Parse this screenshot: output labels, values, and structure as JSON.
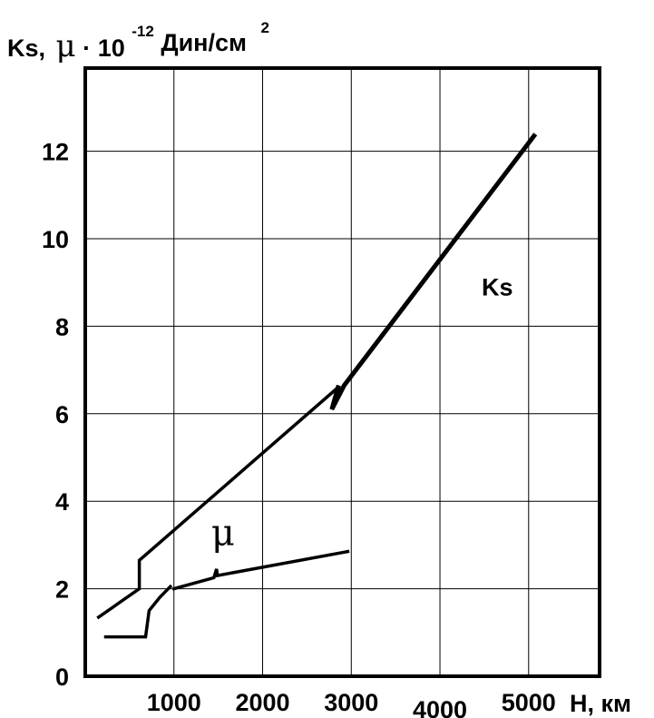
{
  "chart_data": {
    "type": "line",
    "title": "",
    "ylabel": {
      "prefix": "Ks,",
      "mu": "μ",
      "dot": "·",
      "base": "10",
      "exponent": "-12",
      "unit": "Дин/см",
      "unit_exponent": "2"
    },
    "xlabel": "H, км",
    "xlim": [
      0,
      5800
    ],
    "ylim": [
      0,
      13.9
    ],
    "x_ticks": [
      1000,
      2000,
      3000,
      4000,
      5000
    ],
    "x_tick_labels": [
      "1000",
      "2000",
      "3000",
      "4000",
      "5000"
    ],
    "y_ticks": [
      0,
      2,
      4,
      6,
      8,
      10,
      12
    ],
    "y_tick_labels": [
      "0",
      "2",
      "4",
      "6",
      "8",
      "10",
      "12"
    ],
    "grid": true,
    "series": [
      {
        "name": "Ks",
        "color": "#000000",
        "segments": [
          {
            "points": [
              [
                150,
                1.35
              ],
              [
                610,
                2.0
              ],
              [
                610,
                2.65
              ],
              [
                2850,
                6.6
              ]
            ]
          },
          {
            "points": [
              [
                2850,
                6.6
              ],
              [
                2780,
                6.1
              ],
              [
                2920,
                6.65
              ],
              [
                5060,
                12.35
              ]
            ]
          }
        ]
      },
      {
        "name": "μ",
        "color": "#000000",
        "segments": [
          {
            "points": [
              [
                230,
                0.9
              ],
              [
                680,
                0.9
              ],
              [
                720,
                1.5
              ],
              [
                840,
                1.8
              ],
              [
                960,
                2.05
              ]
            ]
          },
          {
            "points": [
              [
                1000,
                2.0
              ],
              [
                1450,
                2.25
              ],
              [
                1480,
                2.45
              ],
              [
                1490,
                2.3
              ],
              [
                2960,
                2.85
              ]
            ]
          }
        ]
      }
    ],
    "annotations": [
      {
        "text": "Ks",
        "series": "Ks",
        "x": 4470,
        "y": 8.7
      },
      {
        "text": "μ",
        "series": "μ",
        "x": 1420,
        "y": 3.0
      }
    ]
  }
}
